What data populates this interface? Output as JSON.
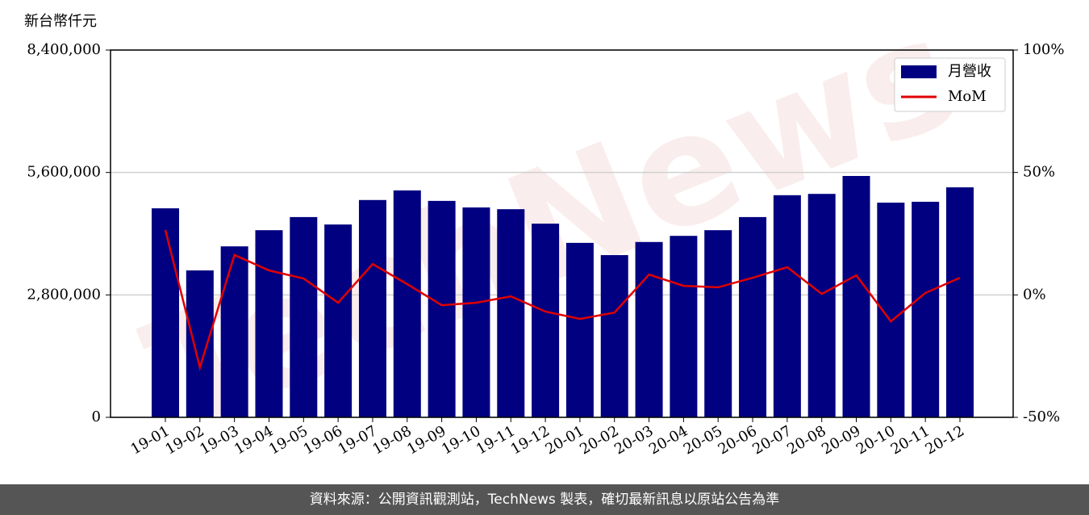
{
  "chart_data": {
    "type": "bar-line",
    "y_label": "新台幣仟元",
    "watermark": "TechNews",
    "footer": "資料來源：公開資訊觀測站，TechNews 製表，確切最新訊息以原站公告為準",
    "categories": [
      "19-01",
      "19-02",
      "19-03",
      "19-04",
      "19-05",
      "19-06",
      "19-07",
      "19-08",
      "19-09",
      "19-10",
      "19-11",
      "19-12",
      "20-01",
      "20-02",
      "20-03",
      "20-04",
      "20-05",
      "20-06",
      "20-07",
      "20-08",
      "20-09",
      "20-10",
      "20-11",
      "20-12"
    ],
    "series": [
      {
        "name": "月營收",
        "type": "bar",
        "color": "#000080",
        "values": [
          4780000,
          3360000,
          3910000,
          4280000,
          4580000,
          4410000,
          4970000,
          5190000,
          4950000,
          4800000,
          4760000,
          4430000,
          3990000,
          3710000,
          4010000,
          4150000,
          4280000,
          4580000,
          5080000,
          5110000,
          5520000,
          4910000,
          4930000,
          5260000
        ]
      },
      {
        "name": "MoM",
        "type": "line",
        "axis": "y2",
        "color": "#e00000",
        "values": [
          26.5,
          -29.6,
          16.3,
          10,
          6.7,
          -3.2,
          12.6,
          4.4,
          -4.2,
          -3.2,
          -0.6,
          -6.8,
          -9.8,
          -7.2,
          8.3,
          3.7,
          3.1,
          7,
          11.3,
          0.4,
          8,
          -10.8,
          0.8,
          7
        ]
      }
    ],
    "ylim": [
      0,
      8400000
    ],
    "yticks": [
      0,
      {
        "value": 2800000,
        "label": "2,800,000"
      },
      {
        "value": 5600000,
        "label": "5,600,000"
      },
      {
        "value": 8400000,
        "label": "8,400,000"
      }
    ],
    "y2lim": [
      -50,
      100
    ],
    "y2ticks": [
      {
        "value": -50,
        "label": "-50%"
      },
      {
        "value": 0,
        "label": "0%"
      },
      {
        "value": 50,
        "label": "50%"
      },
      {
        "value": 100,
        "label": "100%"
      }
    ],
    "grid": true,
    "legend": "upper right"
  }
}
